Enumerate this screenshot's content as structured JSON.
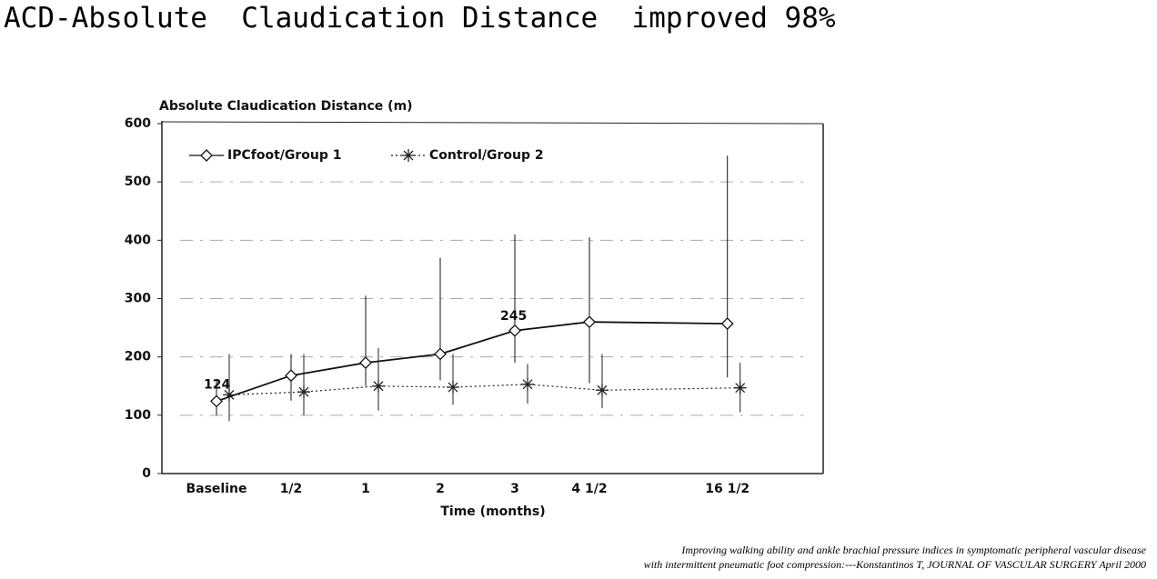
{
  "chart_data": {
    "type": "line",
    "title": "ACD-Absolute  Claudication Distance  improved 98%",
    "ylabel": "Absolute Claudication Distance (m)",
    "xlabel": "Time (months)",
    "categories": [
      "Baseline",
      "1/2",
      "1",
      "2",
      "3",
      "4 1/2",
      "16 1/2"
    ],
    "series": [
      {
        "name": "IPCfoot/Group 1",
        "color": "#111111",
        "marker": "diamond",
        "dash": "solid",
        "values": [
          124,
          168,
          190,
          205,
          245,
          260,
          257
        ],
        "error_high": [
          36,
          37,
          115,
          165,
          165,
          145,
          288
        ],
        "error_low": [
          24,
          43,
          40,
          45,
          55,
          105,
          92
        ]
      },
      {
        "name": "Control/Group 2",
        "color": "#222222",
        "marker": "asterisk",
        "dash": "dotted",
        "values": [
          135,
          140,
          150,
          148,
          153,
          143,
          147
        ],
        "error_high": [
          70,
          65,
          65,
          57,
          35,
          62,
          43
        ],
        "error_low": [
          45,
          40,
          42,
          30,
          33,
          31,
          42
        ]
      }
    ],
    "ylim": [
      0,
      600
    ],
    "yticks": [
      0,
      100,
      200,
      300,
      400,
      500,
      600
    ],
    "grid": true,
    "label_color": "#d0246e",
    "source": [
      "Improving walking ability and ankle brachial pressure indices in symptomatic peripheral vascular disease",
      "with intermittent pneumatic foot compression:---Konstantinos T, JOURNAL OF VASCULAR SURGERY April 2000"
    ]
  }
}
